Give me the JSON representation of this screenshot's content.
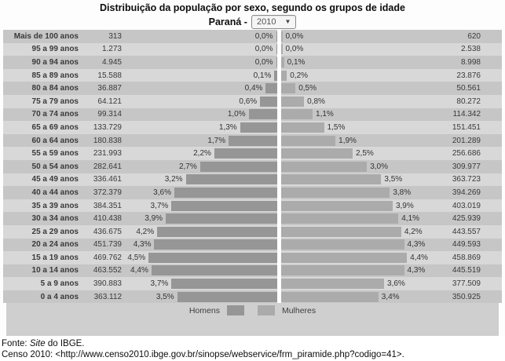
{
  "title": {
    "line1": "Distribuição da população por sexo, segundo os grupos de idade",
    "line2_prefix": "Paraná -"
  },
  "year_select": {
    "value": "2010",
    "arrow": "▼"
  },
  "legend": {
    "homens": "Homens",
    "mulheres": "Mulheres"
  },
  "footer": {
    "line1_prefix": "Fonte: ",
    "line1_italic": "Site",
    "line1_suffix": " do IBGE.",
    "line2": "Censo 2010: <http://www.censo2010.ibge.gov.br/sinopse/webservice/frm_piramide.php?codigo=41>."
  },
  "colors": {
    "male_bar": "#969696",
    "female_bar": "#ababab",
    "stripe_dark": "#c6c6c6",
    "stripe_light": "#d8d8d8",
    "band": "#cfcfcf"
  },
  "chart_data": {
    "type": "bar",
    "subtype": "population-pyramid",
    "title": "Distribuição da população por sexo, segundo os grupos de idade",
    "subtitle": "Paraná - 2010",
    "legend_position": "bottom",
    "grid": false,
    "pct_axis_max": 4.5,
    "categories": [
      "Mais de 100 anos",
      "95 a 99 anos",
      "90 a 94 anos",
      "85 a 89 anos",
      "80 a 84 anos",
      "75 a 79 anos",
      "70 a 74 anos",
      "65 a 69 anos",
      "60 a 64 anos",
      "55 a 59 anos",
      "50 a 54 anos",
      "45 a 49 anos",
      "40 a 44 anos",
      "35 a 39 anos",
      "30 a 34 anos",
      "25 a 29 anos",
      "20 a 24 anos",
      "15 a 19 anos",
      "10 a 14 anos",
      "5 a 9 anos",
      "0 a 4 anos"
    ],
    "series": [
      {
        "name": "Homens",
        "counts": [
          "313",
          "1.273",
          "4.945",
          "15.588",
          "36.887",
          "64.121",
          "99.314",
          "133.729",
          "180.838",
          "231.993",
          "282.641",
          "336.461",
          "372.379",
          "384.351",
          "410.438",
          "436.675",
          "451.739",
          "469.762",
          "463.552",
          "390.883",
          "363.112"
        ],
        "pct_labels": [
          "0,0%",
          "0,0%",
          "0,0%",
          "0,1%",
          "0,4%",
          "0,6%",
          "1,0%",
          "1,3%",
          "1,7%",
          "2,2%",
          "2,7%",
          "3,2%",
          "3,6%",
          "3,7%",
          "3,9%",
          "4,2%",
          "4,3%",
          "4,5%",
          "4,4%",
          "3,7%",
          "3,5%"
        ],
        "pct_values": [
          0.0,
          0.0,
          0.0,
          0.1,
          0.4,
          0.6,
          1.0,
          1.3,
          1.7,
          2.2,
          2.7,
          3.2,
          3.6,
          3.7,
          3.9,
          4.2,
          4.3,
          4.5,
          4.4,
          3.7,
          3.5
        ]
      },
      {
        "name": "Mulheres",
        "counts": [
          "620",
          "2.538",
          "8.998",
          "23.876",
          "50.561",
          "80.272",
          "114.342",
          "151.451",
          "201.289",
          "256.686",
          "309.977",
          "363.723",
          "394.269",
          "403.019",
          "425.939",
          "443.557",
          "449.593",
          "458.869",
          "445.519",
          "377.509",
          "350.925"
        ],
        "pct_labels": [
          "0,0%",
          "0,0%",
          "0,1%",
          "0,2%",
          "0,5%",
          "0,8%",
          "1,1%",
          "1,5%",
          "1,9%",
          "2,5%",
          "3,0%",
          "3,5%",
          "3,8%",
          "3,9%",
          "4,1%",
          "4,2%",
          "4,3%",
          "4,4%",
          "4,3%",
          "3,6%",
          "3,4%"
        ],
        "pct_values": [
          0.0,
          0.0,
          0.1,
          0.2,
          0.5,
          0.8,
          1.1,
          1.5,
          1.9,
          2.5,
          3.0,
          3.5,
          3.8,
          3.9,
          4.1,
          4.2,
          4.3,
          4.4,
          4.3,
          3.6,
          3.4
        ]
      }
    ]
  }
}
